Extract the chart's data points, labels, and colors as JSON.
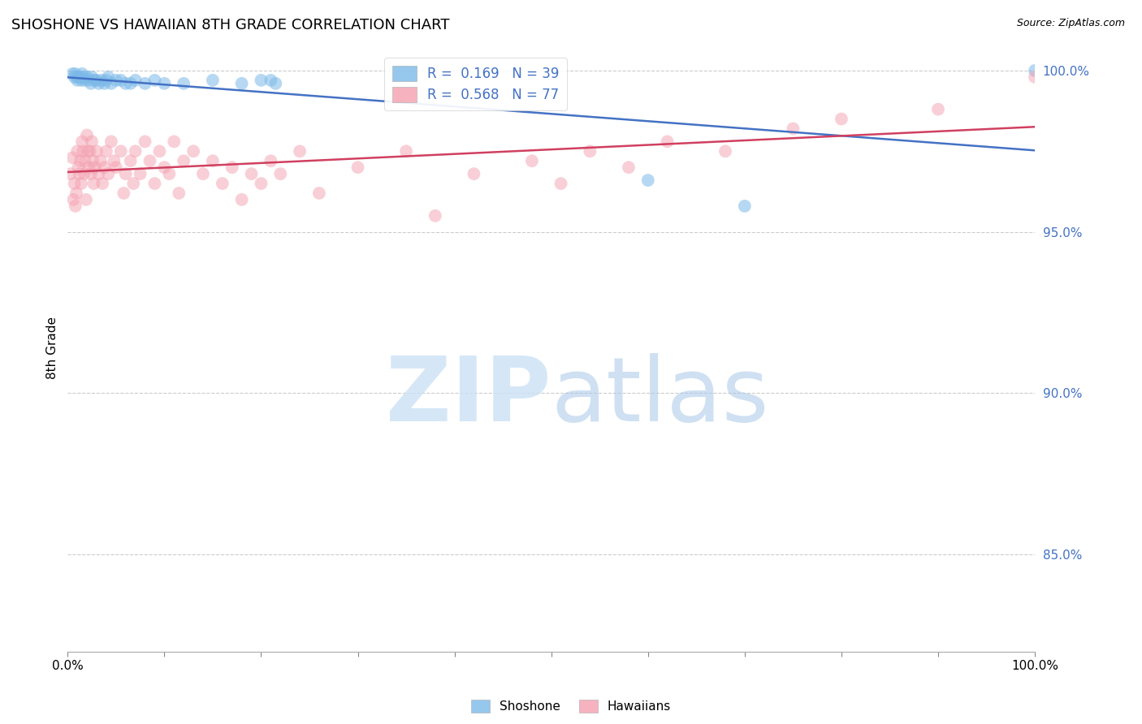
{
  "title": "SHOSHONE VS HAWAIIAN 8TH GRADE CORRELATION CHART",
  "source": "Source: ZipAtlas.com",
  "ylabel": "8th Grade",
  "ylabel_right_labels": [
    "100.0%",
    "95.0%",
    "90.0%",
    "85.0%"
  ],
  "ylabel_right_values": [
    1.0,
    0.95,
    0.9,
    0.85
  ],
  "xmin": 0.0,
  "xmax": 1.0,
  "ymin": 0.82,
  "ymax": 1.008,
  "legend_label_blue": "R =  0.169   N = 39",
  "legend_label_pink": "R =  0.568   N = 77",
  "shoshone_color": "#7cb9e8",
  "hawaiian_color": "#f4a0b0",
  "shoshone_line_color": "#4472C4",
  "hawaiian_line_color": "#d04060",
  "bottom_label_shoshone": "Shoshone",
  "bottom_label_hawaiian": "Hawaiians",
  "shoshone_x": [
    0.005,
    0.007,
    0.008,
    0.01,
    0.01,
    0.012,
    0.014,
    0.015,
    0.016,
    0.018,
    0.02,
    0.022,
    0.024,
    0.025,
    0.028,
    0.03,
    0.032,
    0.035,
    0.038,
    0.04,
    0.042,
    0.045,
    0.05,
    0.055,
    0.06,
    0.065,
    0.07,
    0.08,
    0.09,
    0.1,
    0.12,
    0.15,
    0.18,
    0.2,
    0.21,
    0.215,
    0.6,
    0.7,
    1.0
  ],
  "shoshone_y": [
    0.999,
    0.998,
    0.999,
    0.998,
    0.997,
    0.998,
    0.997,
    0.999,
    0.998,
    0.997,
    0.998,
    0.997,
    0.996,
    0.998,
    0.997,
    0.997,
    0.996,
    0.997,
    0.996,
    0.997,
    0.998,
    0.996,
    0.997,
    0.997,
    0.996,
    0.996,
    0.997,
    0.996,
    0.997,
    0.996,
    0.996,
    0.997,
    0.996,
    0.997,
    0.997,
    0.996,
    0.966,
    0.958,
    1.0
  ],
  "hawaiian_x": [
    0.003,
    0.005,
    0.006,
    0.007,
    0.008,
    0.009,
    0.01,
    0.011,
    0.012,
    0.013,
    0.014,
    0.015,
    0.016,
    0.017,
    0.018,
    0.019,
    0.02,
    0.021,
    0.022,
    0.023,
    0.024,
    0.025,
    0.026,
    0.027,
    0.028,
    0.03,
    0.032,
    0.034,
    0.036,
    0.038,
    0.04,
    0.042,
    0.045,
    0.048,
    0.05,
    0.055,
    0.058,
    0.06,
    0.065,
    0.068,
    0.07,
    0.075,
    0.08,
    0.085,
    0.09,
    0.095,
    0.1,
    0.105,
    0.11,
    0.115,
    0.12,
    0.13,
    0.14,
    0.15,
    0.16,
    0.17,
    0.18,
    0.19,
    0.2,
    0.21,
    0.22,
    0.24,
    0.26,
    0.3,
    0.35,
    0.38,
    0.42,
    0.48,
    0.51,
    0.54,
    0.58,
    0.62,
    0.68,
    0.75,
    0.8,
    0.9,
    1.0
  ],
  "hawaiian_y": [
    0.968,
    0.973,
    0.96,
    0.965,
    0.958,
    0.962,
    0.975,
    0.97,
    0.968,
    0.972,
    0.965,
    0.978,
    0.975,
    0.968,
    0.972,
    0.96,
    0.98,
    0.975,
    0.97,
    0.975,
    0.968,
    0.978,
    0.972,
    0.965,
    0.97,
    0.975,
    0.968,
    0.972,
    0.965,
    0.97,
    0.975,
    0.968,
    0.978,
    0.972,
    0.97,
    0.975,
    0.962,
    0.968,
    0.972,
    0.965,
    0.975,
    0.968,
    0.978,
    0.972,
    0.965,
    0.975,
    0.97,
    0.968,
    0.978,
    0.962,
    0.972,
    0.975,
    0.968,
    0.972,
    0.965,
    0.97,
    0.96,
    0.968,
    0.965,
    0.972,
    0.968,
    0.975,
    0.962,
    0.97,
    0.975,
    0.955,
    0.968,
    0.972,
    0.965,
    0.975,
    0.97,
    0.978,
    0.975,
    0.982,
    0.985,
    0.988,
    0.998
  ]
}
